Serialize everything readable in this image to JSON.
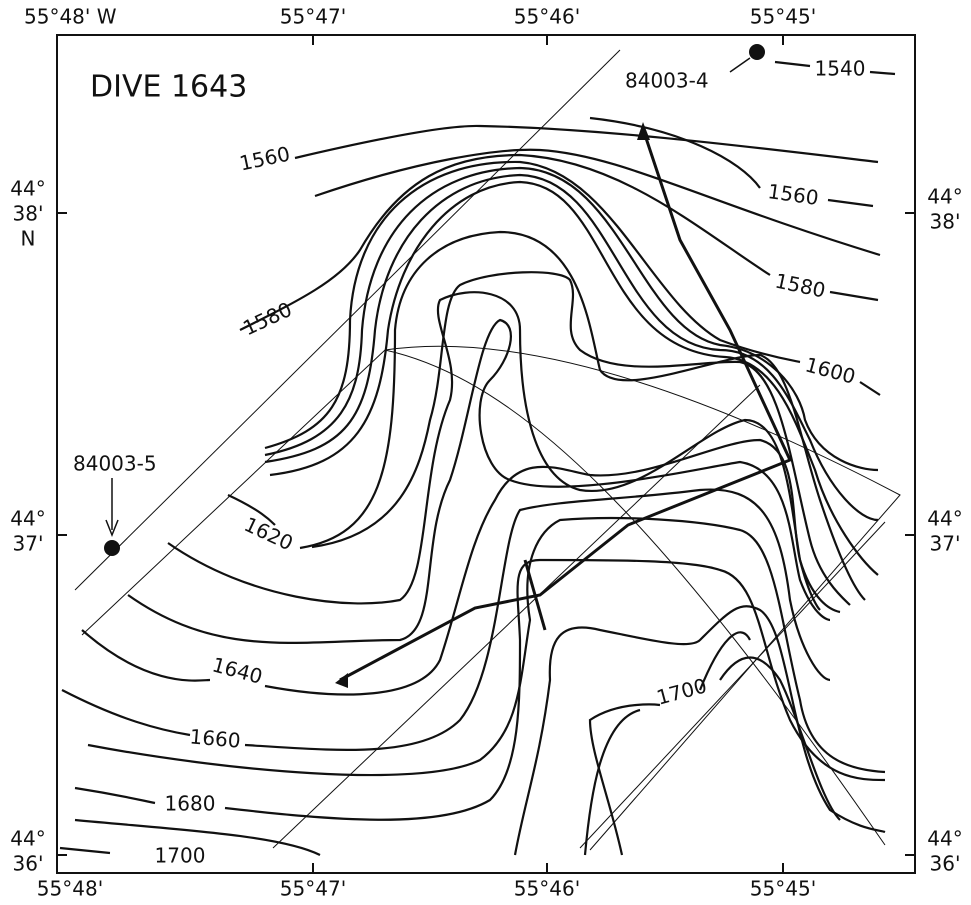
{
  "title": "DIVE 1643",
  "top_labels": [
    "55°48' W",
    "55°47'",
    "55°46'",
    "55°45'"
  ],
  "bottom_labels": [
    "55°48'",
    "55°47'",
    "55°46'",
    "55°45'"
  ],
  "left_labels": [
    {
      "deg": "44°",
      "min": "38'",
      "hemi": "N"
    },
    {
      "deg": "44°",
      "min": "37'"
    },
    {
      "deg": "44°",
      "min": "36'"
    }
  ],
  "right_labels": [
    {
      "deg": "44°",
      "min": "38'"
    },
    {
      "deg": "44°",
      "min": "37'"
    },
    {
      "deg": "44°",
      "min": "36'"
    }
  ],
  "stations": [
    "84003-4",
    "84003-5"
  ],
  "contour_labels": [
    "1540",
    "1560",
    "1560",
    "1580",
    "1580",
    "1600",
    "1620",
    "1640",
    "1660",
    "1680",
    "1700",
    "1700"
  ]
}
